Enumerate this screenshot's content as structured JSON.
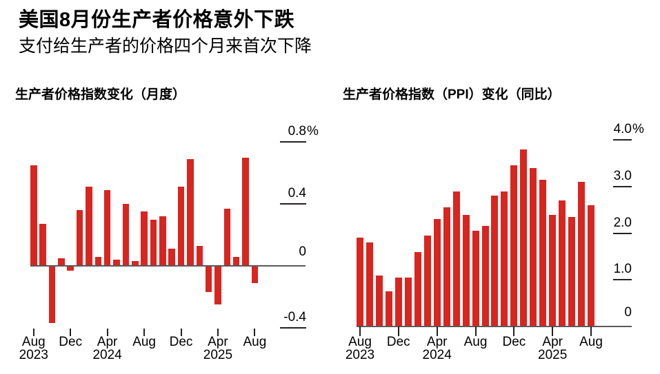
{
  "header": {
    "title": "美国8月份生产者价格意外下跌",
    "subtitle": "支付给生产者的价格四个月来首次下降"
  },
  "colors": {
    "bar_red": "#d8251f",
    "axis_gray": "#58595b",
    "tick_dark": "#231f20",
    "text": "#000000",
    "background": "#ffffff"
  },
  "chart_data": [
    {
      "type": "bar",
      "title": "生产者价格指数变化（月度）",
      "unit": "%",
      "legend": "none",
      "grid": false,
      "ylim": [
        -0.45,
        0.85
      ],
      "categories": [
        "Aug 2023",
        "Sep 2023",
        "Oct 2023",
        "Nov 2023",
        "Dec 2023",
        "Jan 2024",
        "Feb 2024",
        "Mar 2024",
        "Apr 2024",
        "May 2024",
        "Jun 2024",
        "Jul 2024",
        "Aug 2024",
        "Sep 2024",
        "Oct 2024",
        "Nov 2024",
        "Dec 2024",
        "Jan 2025",
        "Feb 2025",
        "Mar 2025",
        "Apr 2025",
        "May 2025",
        "Jun 2025",
        "Jul 2025",
        "Aug 2025"
      ],
      "values": [
        0.65,
        0.27,
        -0.37,
        0.05,
        -0.03,
        0.36,
        0.51,
        0.06,
        0.49,
        0.04,
        0.4,
        0.03,
        0.35,
        0.3,
        0.32,
        0.11,
        0.51,
        0.69,
        0.13,
        -0.17,
        -0.25,
        0.37,
        0.06,
        0.7,
        -0.11
      ],
      "yticks": [
        {
          "value": 0.8,
          "label": "0.8",
          "suffix": "%"
        },
        {
          "value": 0.4,
          "label": "0.4"
        },
        {
          "value": 0,
          "label": "0"
        },
        {
          "value": -0.4,
          "label": "-0.4"
        }
      ],
      "xticks": [
        {
          "index": 0,
          "month": "Aug",
          "year": "2023"
        },
        {
          "index": 4,
          "month": "Dec"
        },
        {
          "index": 8,
          "month": "Apr",
          "year": "2024"
        },
        {
          "index": 12,
          "month": "Aug"
        },
        {
          "index": 16,
          "month": "Dec"
        },
        {
          "index": 20,
          "month": "Apr",
          "year": "2025"
        },
        {
          "index": 24,
          "month": "Aug"
        }
      ]
    },
    {
      "type": "bar",
      "title": "生产者价格指数（PPI）变化（同比）",
      "unit": "%",
      "legend": "none",
      "grid": false,
      "ylim": [
        0,
        4.3
      ],
      "categories": [
        "Aug 2023",
        "Sep 2023",
        "Oct 2023",
        "Nov 2023",
        "Dec 2023",
        "Jan 2024",
        "Feb 2024",
        "Mar 2024",
        "Apr 2024",
        "May 2024",
        "Jun 2024",
        "Jul 2024",
        "Aug 2024",
        "Sep 2024",
        "Oct 2024",
        "Nov 2024",
        "Dec 2024",
        "Jan 2025",
        "Feb 2025",
        "Mar 2025",
        "Apr 2025",
        "May 2025",
        "Jun 2025",
        "Jul 2025",
        "Aug 2025"
      ],
      "values": [
        1.9,
        1.8,
        1.1,
        0.75,
        1.05,
        1.05,
        1.6,
        1.95,
        2.3,
        2.55,
        2.9,
        2.4,
        2.05,
        2.15,
        2.8,
        2.9,
        3.45,
        3.8,
        3.4,
        3.15,
        2.4,
        2.7,
        2.35,
        3.1,
        2.6
      ],
      "yticks": [
        {
          "value": 4,
          "label": "4.0",
          "suffix": "%"
        },
        {
          "value": 3,
          "label": "3.0"
        },
        {
          "value": 2,
          "label": "2.0"
        },
        {
          "value": 1,
          "label": "1.0"
        },
        {
          "value": 0,
          "label": "0"
        }
      ],
      "xticks": [
        {
          "index": 0,
          "month": "Aug",
          "year": "2023"
        },
        {
          "index": 4,
          "month": "Dec"
        },
        {
          "index": 8,
          "month": "Apr",
          "year": "2024"
        },
        {
          "index": 12,
          "month": "Aug"
        },
        {
          "index": 16,
          "month": "Dec"
        },
        {
          "index": 20,
          "month": "Apr",
          "year": "2025"
        },
        {
          "index": 24,
          "month": "Aug"
        }
      ]
    }
  ]
}
